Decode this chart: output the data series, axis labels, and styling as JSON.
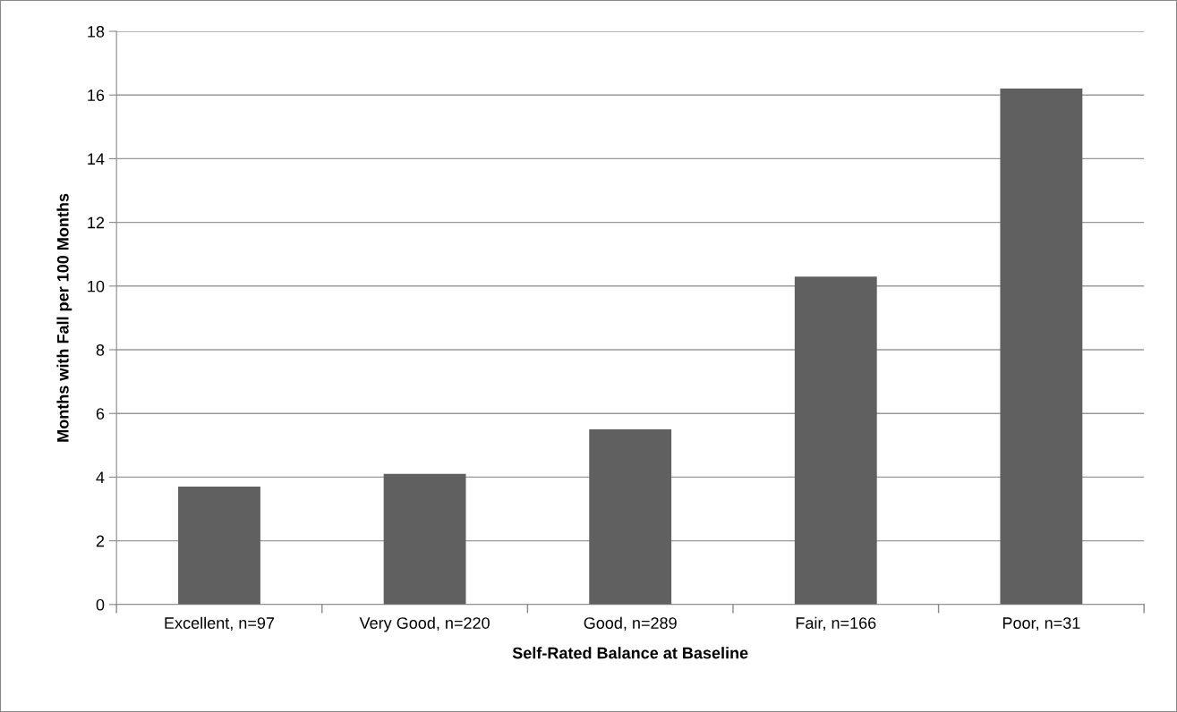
{
  "chart_data": {
    "type": "bar",
    "xlabel": "Self-Rated Balance at Baseline",
    "ylabel": "Months with Fall per 100 Months",
    "categories": [
      "Excellent, n=97",
      "Very Good, n=220",
      "Good, n=289",
      "Fair, n=166",
      "Poor, n=31"
    ],
    "values": [
      3.7,
      4.1,
      5.5,
      10.3,
      16.2
    ],
    "color": "#606060",
    "ylim": [
      0,
      18
    ],
    "yticks": [
      0,
      2,
      4,
      6,
      8,
      10,
      12,
      14,
      16,
      18
    ],
    "grid": "y"
  }
}
